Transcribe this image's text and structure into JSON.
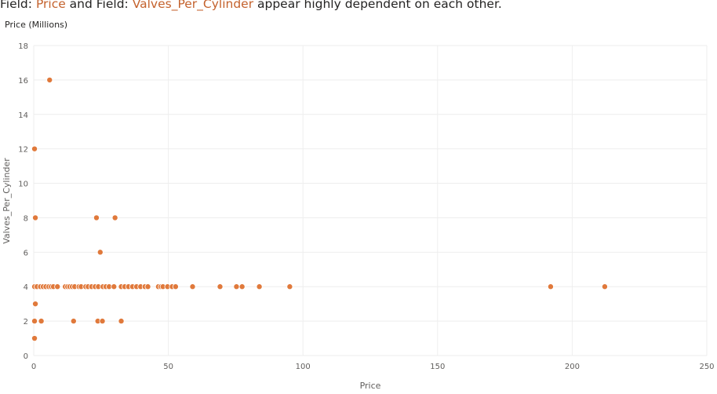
{
  "headline": {
    "prefix_1": "Field: ",
    "field_1": "Price",
    "mid": " and Field: ",
    "field_2": "Valves_Per_Cylinder",
    "suffix": " appear highly dependent on each other."
  },
  "colors": {
    "accent": "#c4622d",
    "marker": "#e0793b",
    "grid": "#eeeeee",
    "text": "#605e5c"
  },
  "chart_data": {
    "type": "scatter",
    "title": "Field: Price and Field: Valves_Per_Cylinder appear highly dependent on each other.",
    "unit_label": "Price (Millions)",
    "xlabel": "Price",
    "ylabel": "Valves_Per_Cylinder",
    "xlim": [
      0,
      250
    ],
    "ylim": [
      0,
      18
    ],
    "x_ticks": [
      0,
      50,
      100,
      150,
      200,
      250
    ],
    "y_ticks": [
      0,
      2,
      4,
      6,
      8,
      10,
      12,
      14,
      16,
      18
    ],
    "grid": true,
    "points": [
      {
        "x": 0.3,
        "y": 1
      },
      {
        "x": 0.3,
        "y": 2
      },
      {
        "x": 0.6,
        "y": 3
      },
      {
        "x": 2.8,
        "y": 2
      },
      {
        "x": 14.8,
        "y": 2
      },
      {
        "x": 23.8,
        "y": 2
      },
      {
        "x": 25.5,
        "y": 2
      },
      {
        "x": 32.5,
        "y": 2
      },
      {
        "x": 0.3,
        "y": 4
      },
      {
        "x": 1.2,
        "y": 4
      },
      {
        "x": 2.5,
        "y": 4
      },
      {
        "x": 3.5,
        "y": 4
      },
      {
        "x": 4.5,
        "y": 4
      },
      {
        "x": 5.6,
        "y": 4
      },
      {
        "x": 6.5,
        "y": 4
      },
      {
        "x": 7.3,
        "y": 4
      },
      {
        "x": 8.8,
        "y": 4
      },
      {
        "x": 11.7,
        "y": 4
      },
      {
        "x": 12.6,
        "y": 4
      },
      {
        "x": 13.4,
        "y": 4
      },
      {
        "x": 14.3,
        "y": 4
      },
      {
        "x": 15.2,
        "y": 4
      },
      {
        "x": 16.8,
        "y": 4
      },
      {
        "x": 17.6,
        "y": 4
      },
      {
        "x": 19.3,
        "y": 4
      },
      {
        "x": 20.2,
        "y": 4
      },
      {
        "x": 21.5,
        "y": 4
      },
      {
        "x": 22.8,
        "y": 4
      },
      {
        "x": 24.0,
        "y": 4
      },
      {
        "x": 25.7,
        "y": 4
      },
      {
        "x": 26.8,
        "y": 4
      },
      {
        "x": 28.0,
        "y": 4
      },
      {
        "x": 29.8,
        "y": 4
      },
      {
        "x": 32.5,
        "y": 4
      },
      {
        "x": 33.8,
        "y": 4
      },
      {
        "x": 35.2,
        "y": 4
      },
      {
        "x": 36.7,
        "y": 4
      },
      {
        "x": 38.2,
        "y": 4
      },
      {
        "x": 39.7,
        "y": 4
      },
      {
        "x": 41.3,
        "y": 4
      },
      {
        "x": 42.4,
        "y": 4
      },
      {
        "x": 46.3,
        "y": 4
      },
      {
        "x": 47.3,
        "y": 4
      },
      {
        "x": 48.0,
        "y": 4
      },
      {
        "x": 49.7,
        "y": 4
      },
      {
        "x": 51.4,
        "y": 4
      },
      {
        "x": 52.7,
        "y": 4
      },
      {
        "x": 59.0,
        "y": 4
      },
      {
        "x": 69.2,
        "y": 4
      },
      {
        "x": 75.3,
        "y": 4
      },
      {
        "x": 77.4,
        "y": 4
      },
      {
        "x": 83.8,
        "y": 4
      },
      {
        "x": 95.1,
        "y": 4
      },
      {
        "x": 192.0,
        "y": 4
      },
      {
        "x": 212.1,
        "y": 4
      },
      {
        "x": 24.7,
        "y": 6
      },
      {
        "x": 0.6,
        "y": 8
      },
      {
        "x": 23.3,
        "y": 8
      },
      {
        "x": 30.2,
        "y": 8
      },
      {
        "x": 0.3,
        "y": 12
      },
      {
        "x": 5.9,
        "y": 16
      }
    ]
  }
}
